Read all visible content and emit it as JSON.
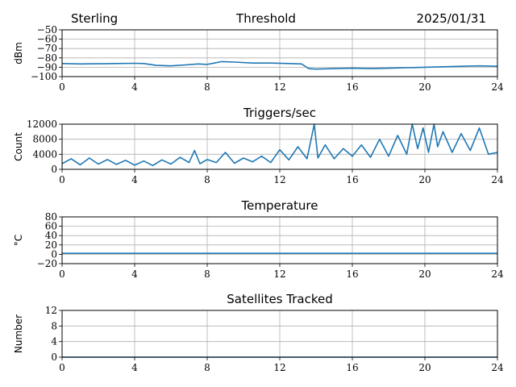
{
  "header": {
    "station": "Sterling",
    "title": "Threshold",
    "date": "2025/01/31"
  },
  "colors": {
    "series": "#1f77b4",
    "grid": "#b0b0b0"
  },
  "chart_data": [
    {
      "type": "line",
      "title": "",
      "ylabel": "dBm",
      "xlim": [
        0,
        24
      ],
      "xticks": [
        0,
        4,
        8,
        12,
        16,
        20,
        24
      ],
      "ylim": [
        -100,
        -50
      ],
      "yticks": [
        -100,
        -90,
        -80,
        -70,
        -60,
        -50
      ],
      "ytick_labels": [
        "−100",
        "−90",
        "−80",
        "−70",
        "−60",
        "−50"
      ],
      "grid": true,
      "series": [
        {
          "x": [
            0,
            1,
            2,
            3,
            4,
            4.5,
            5.2,
            6,
            6.8,
            7.5,
            8,
            8.4,
            8.8,
            9.5,
            10.5,
            11.5,
            12.5,
            13.2,
            13.6,
            14,
            15,
            16,
            17,
            18,
            19,
            20,
            21,
            22,
            23,
            24
          ],
          "y": [
            -86,
            -86.5,
            -86.3,
            -86,
            -85.8,
            -86,
            -88,
            -88.5,
            -87.5,
            -86.5,
            -87,
            -85.5,
            -84,
            -84.5,
            -85.5,
            -85.5,
            -86,
            -86.5,
            -91.5,
            -92,
            -91.5,
            -91,
            -91.5,
            -91,
            -90.5,
            -90,
            -89.5,
            -89,
            -88.5,
            -89
          ]
        }
      ]
    },
    {
      "type": "line",
      "title": "Triggers/sec",
      "ylabel": "Count",
      "xlim": [
        0,
        24
      ],
      "xticks": [
        0,
        4,
        8,
        12,
        16,
        20,
        24
      ],
      "ylim": [
        0,
        12000
      ],
      "yticks": [
        0,
        4000,
        8000,
        12000
      ],
      "ytick_labels": [
        "0",
        "4000",
        "8000",
        "12000"
      ],
      "grid": true,
      "series": [
        {
          "x": [
            0,
            0.5,
            1,
            1.5,
            2,
            2.5,
            3,
            3.5,
            4,
            4.5,
            5,
            5.5,
            6,
            6.5,
            7,
            7.3,
            7.6,
            8,
            8.5,
            9,
            9.5,
            10,
            10.5,
            11,
            11.5,
            12,
            12.5,
            13,
            13.5,
            13.9,
            14.1,
            14.5,
            15,
            15.5,
            16,
            16.5,
            17,
            17.5,
            18,
            18.5,
            19,
            19.3,
            19.6,
            19.9,
            20.2,
            20.5,
            20.7,
            21,
            21.5,
            22,
            22.5,
            23,
            23.5,
            24
          ],
          "y": [
            1500,
            2800,
            1200,
            3000,
            1400,
            2600,
            1300,
            2400,
            1100,
            2200,
            1000,
            2500,
            1400,
            3200,
            1800,
            5000,
            1500,
            2600,
            1800,
            4500,
            1600,
            3000,
            2000,
            3500,
            1800,
            5200,
            2500,
            6000,
            2800,
            12000,
            3000,
            6500,
            2800,
            5500,
            3500,
            6500,
            3200,
            8000,
            3500,
            9000,
            4000,
            12000,
            5500,
            11000,
            4500,
            12000,
            6000,
            10000,
            4500,
            9500,
            5000,
            11000,
            4000,
            4500
          ]
        }
      ]
    },
    {
      "type": "line",
      "title": "Temperature",
      "ylabel": "°C",
      "xlim": [
        0,
        24
      ],
      "xticks": [
        0,
        4,
        8,
        12,
        16,
        20,
        24
      ],
      "ylim": [
        -20,
        80
      ],
      "yticks": [
        -20,
        0,
        20,
        40,
        60,
        80
      ],
      "ytick_labels": [
        "−20",
        "0",
        "20",
        "40",
        "60",
        "80"
      ],
      "grid": true,
      "series": [
        {
          "x": [
            0,
            24
          ],
          "y": [
            2,
            2
          ]
        }
      ]
    },
    {
      "type": "line",
      "title": "Satellites Tracked",
      "ylabel": "Number",
      "xlim": [
        0,
        24
      ],
      "xticks": [
        0,
        4,
        8,
        12,
        16,
        20,
        24
      ],
      "ylim": [
        0,
        12
      ],
      "yticks": [
        0,
        4,
        8,
        12
      ],
      "ytick_labels": [
        "0",
        "4",
        "8",
        "12"
      ],
      "grid": true,
      "series": [
        {
          "x": [
            0,
            24
          ],
          "y": [
            0,
            0
          ]
        }
      ]
    }
  ]
}
